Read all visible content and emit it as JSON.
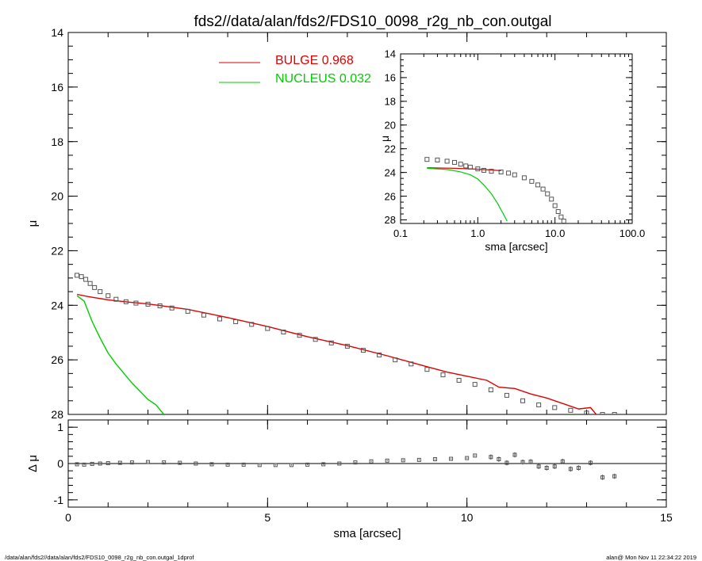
{
  "chart_data": [
    {
      "type": "scatter",
      "title": "fds2//data/alan/fds2/FDS10_0098_r2g_nb_con.outgal",
      "xlabel": "",
      "ylabel": "μ",
      "xlim": [
        0,
        15
      ],
      "ylim": [
        28,
        14
      ],
      "x_ticks": [
        "0",
        "5",
        "10",
        "15"
      ],
      "y_ticks": [
        "14",
        "16",
        "18",
        "20",
        "22",
        "24",
        "26",
        "28"
      ],
      "legend_placement": "top-center",
      "series": [
        {
          "name": "",
          "marker": "open-square",
          "color": "#555555",
          "x": [
            0.22,
            0.33,
            0.44,
            0.55,
            0.66,
            0.8,
            1.0,
            1.2,
            1.45,
            1.7,
            2.0,
            2.3,
            2.6,
            3.0,
            3.4,
            3.8,
            4.2,
            4.6,
            5.0,
            5.4,
            5.8,
            6.2,
            6.6,
            7.0,
            7.4,
            7.8,
            8.2,
            8.6,
            9.0,
            9.4,
            9.8,
            10.2,
            10.6,
            11.0,
            11.4,
            11.8,
            12.2,
            12.6,
            13.0,
            13.4,
            13.7
          ],
          "y": [
            22.9,
            22.95,
            23.05,
            23.2,
            23.35,
            23.5,
            23.65,
            23.78,
            23.87,
            23.92,
            23.96,
            24.02,
            24.1,
            24.22,
            24.36,
            24.5,
            24.6,
            24.7,
            24.85,
            24.98,
            25.1,
            25.25,
            25.38,
            25.5,
            25.65,
            25.82,
            26.0,
            26.15,
            26.35,
            26.55,
            26.75,
            26.9,
            27.1,
            27.3,
            27.5,
            27.65,
            27.75,
            27.85,
            27.95,
            28.0,
            28.0
          ]
        }
      ],
      "lines": [
        {
          "name": "BULGE",
          "value": "0.968",
          "color": "#e00000",
          "x": [
            0.22,
            0.5,
            1.0,
            1.5,
            2.0,
            3.0,
            4.0,
            5.0,
            6.0,
            7.0,
            8.0,
            8.5,
            9.0,
            9.5,
            10.0,
            10.5,
            10.8,
            11.2,
            11.6,
            12.0,
            12.4,
            12.8,
            13.1,
            13.3
          ],
          "y": [
            23.6,
            23.68,
            23.8,
            23.88,
            23.95,
            24.15,
            24.45,
            24.78,
            25.15,
            25.48,
            25.85,
            26.05,
            26.25,
            26.45,
            26.6,
            26.75,
            27.0,
            27.05,
            27.25,
            27.4,
            27.6,
            27.8,
            27.75,
            28.1
          ]
        },
        {
          "name": "NUCLEUS",
          "value": "0.032",
          "color": "#00cc00",
          "x": [
            0.22,
            0.4,
            0.6,
            0.8,
            1.0,
            1.2,
            1.4,
            1.6,
            1.8,
            2.0,
            2.2,
            2.4
          ],
          "y": [
            23.65,
            23.85,
            24.6,
            25.2,
            25.75,
            26.15,
            26.5,
            26.85,
            27.15,
            27.45,
            27.65,
            28.0
          ]
        }
      ]
    },
    {
      "type": "scatter",
      "title": "",
      "xlabel": "sma [arcsec]",
      "ylabel": "Δ μ",
      "xlim": [
        0,
        15
      ],
      "ylim": [
        -1.2,
        1.2
      ],
      "x_ticks": [
        "0",
        "5",
        "10",
        "15"
      ],
      "y_ticks": [
        "1",
        "0",
        "-1"
      ],
      "series": [
        {
          "name": "",
          "marker": "open-square",
          "color": "#555555",
          "x": [
            0.22,
            0.4,
            0.6,
            0.8,
            1.0,
            1.3,
            1.6,
            2.0,
            2.4,
            2.8,
            3.2,
            3.6,
            4.0,
            4.4,
            4.8,
            5.2,
            5.6,
            6.0,
            6.4,
            6.8,
            7.2,
            7.6,
            8.0,
            8.4,
            8.8,
            9.2,
            9.6,
            10.0,
            10.2,
            10.6,
            10.8,
            11.0,
            11.2,
            11.4,
            11.6,
            11.8,
            12.0,
            12.2,
            12.4,
            12.6,
            12.8,
            13.1,
            13.4,
            13.7
          ],
          "y": [
            -0.02,
            -0.03,
            -0.01,
            0.0,
            0.01,
            0.02,
            0.03,
            0.04,
            0.03,
            0.02,
            0.0,
            -0.02,
            -0.03,
            -0.03,
            -0.04,
            -0.04,
            -0.04,
            -0.03,
            -0.02,
            0.0,
            0.03,
            0.06,
            0.08,
            0.09,
            0.1,
            0.12,
            0.13,
            0.15,
            0.22,
            0.18,
            0.12,
            0.02,
            0.24,
            0.04,
            0.05,
            -0.08,
            -0.12,
            -0.08,
            0.06,
            -0.15,
            -0.12,
            0.02,
            -0.38,
            -0.35
          ]
        }
      ]
    },
    {
      "type": "scatter",
      "title": "",
      "xlabel": "sma [arcsec]",
      "ylabel": "μ",
      "x_scale": "log",
      "xlim": [
        0.1,
        100
      ],
      "ylim": [
        28.3,
        14
      ],
      "x_ticks": [
        "0.1",
        "1.0",
        "10.0",
        "100.0"
      ],
      "y_ticks": [
        "14",
        "16",
        "18",
        "20",
        "22",
        "24",
        "26",
        "28"
      ],
      "series": [
        {
          "name": "",
          "marker": "open-square",
          "color": "#555555",
          "x": [
            0.22,
            0.3,
            0.4,
            0.5,
            0.6,
            0.7,
            0.8,
            1.0,
            1.2,
            1.5,
            2.0,
            2.5,
            3.0,
            4.0,
            5.0,
            6.0,
            7.0,
            8.0,
            9.0,
            10.0,
            11.0,
            12.0,
            13.0
          ],
          "y": [
            22.9,
            22.95,
            23.05,
            23.15,
            23.3,
            23.45,
            23.55,
            23.7,
            23.82,
            23.9,
            23.96,
            24.05,
            24.2,
            24.45,
            24.75,
            25.05,
            25.4,
            25.8,
            26.25,
            26.8,
            27.3,
            27.75,
            28.1
          ]
        }
      ],
      "lines": [
        {
          "name": "BULGE",
          "color": "#e00000",
          "x": [
            0.22,
            0.5,
            1.0,
            2.0
          ],
          "y": [
            23.6,
            23.65,
            23.72,
            23.85
          ]
        },
        {
          "name": "NUCLEUS",
          "color": "#00cc00",
          "x": [
            0.22,
            0.4,
            0.6,
            0.8,
            1.0,
            1.2,
            1.5,
            1.8,
            2.1,
            2.4
          ],
          "y": [
            23.65,
            23.75,
            23.95,
            24.2,
            24.55,
            25.05,
            25.8,
            26.6,
            27.4,
            28.1
          ]
        }
      ]
    }
  ],
  "legend": [
    {
      "label": "BULGE  0.968",
      "color": "#e00000"
    },
    {
      "label": "NUCLEUS  0.032",
      "color": "#00cc00"
    }
  ],
  "footer": {
    "left": "/data/alan/fds2//data/alan/fds2/FDS10_0098_r2g_nb_con.outgal_1dprof",
    "right": "alan@  Mon Nov 11 22:34:22 2019"
  }
}
